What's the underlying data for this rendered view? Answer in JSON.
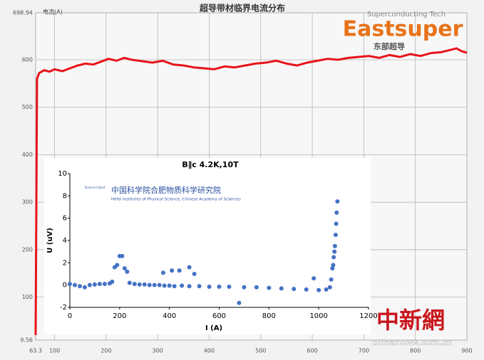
{
  "chart_data": [
    {
      "type": "line",
      "title": "超导带材临界电流分布",
      "y_label": "电流(A)",
      "xlim": [
        63.3,
        900
      ],
      "xticks": [
        63.3,
        100,
        200,
        300,
        400,
        500,
        600,
        700,
        800,
        900
      ],
      "ylim": [
        9.56,
        698.94
      ],
      "yticks": [
        9.56,
        100,
        200,
        300,
        400,
        500,
        600,
        698.94
      ],
      "grid": true,
      "x": [
        63.3,
        66,
        70,
        80,
        90,
        100,
        115,
        130,
        145,
        160,
        175,
        190,
        205,
        220,
        235,
        250,
        270,
        290,
        310,
        330,
        350,
        370,
        390,
        410,
        430,
        450,
        470,
        490,
        510,
        530,
        550,
        570,
        590,
        610,
        630,
        650,
        670,
        690,
        710,
        730,
        750,
        770,
        790,
        810,
        830,
        850,
        865,
        880,
        890,
        900
      ],
      "series": [
        {
          "name": "电流",
          "color": "#e8141a",
          "values": [
            20,
            560,
            572,
            578,
            575,
            580,
            576,
            582,
            588,
            592,
            590,
            596,
            602,
            598,
            604,
            600,
            597,
            594,
            598,
            590,
            588,
            584,
            582,
            580,
            586,
            584,
            588,
            592,
            594,
            598,
            592,
            588,
            594,
            598,
            602,
            600,
            604,
            606,
            608,
            604,
            610,
            606,
            612,
            608,
            614,
            616,
            620,
            624,
            618,
            615
          ]
        }
      ]
    },
    {
      "type": "scatter",
      "title": "B∥c  4.2K,10T",
      "x_label": "I (A)",
      "y_label": "U (uV)",
      "xlim": [
        0,
        1200
      ],
      "xticks": [
        0,
        200,
        400,
        600,
        800,
        1000,
        1200
      ],
      "ylim": [
        -2,
        10
      ],
      "yticks": [
        -2,
        0,
        2,
        4,
        6,
        8,
        10
      ],
      "x": [
        0,
        20,
        40,
        60,
        80,
        100,
        120,
        140,
        160,
        170,
        240,
        260,
        280,
        300,
        320,
        340,
        360,
        380,
        400,
        420,
        450,
        480,
        520,
        560,
        600,
        640,
        700,
        750,
        800,
        850,
        900,
        950,
        1000,
        1030,
        1045,
        180,
        190,
        200,
        210,
        220,
        230,
        375,
        410,
        440,
        480,
        500,
        680,
        980,
        1050,
        1055,
        1058,
        1060,
        1063,
        1065,
        1068,
        1070,
        1072,
        1075
      ],
      "series": [
        {
          "name": "U",
          "color": "#4472c4",
          "values": [
            0.1,
            0,
            -0.1,
            -0.2,
            0,
            0.05,
            0.1,
            0.1,
            0.15,
            0.3,
            0.2,
            0.1,
            0.05,
            0.05,
            0,
            0,
            0,
            -0.05,
            -0.05,
            -0.1,
            -0.05,
            -0.1,
            -0.1,
            -0.15,
            -0.15,
            -0.15,
            -0.2,
            -0.2,
            -0.25,
            -0.3,
            -0.35,
            -0.4,
            -0.45,
            -0.4,
            -0.2,
            1.6,
            1.8,
            2.6,
            2.6,
            1.5,
            1.2,
            1.1,
            1.3,
            1.3,
            1.6,
            1.0,
            -1.6,
            0.6,
            0.5,
            1.5,
            1.8,
            2.5,
            3,
            3.5,
            4.5,
            5.5,
            6.5,
            7.5
          ]
        }
      ]
    }
  ],
  "logo": {
    "tagline": "Superconducting Tech",
    "name": "Eastsuper",
    "chinese": "东部超导"
  },
  "inset_logo": {
    "chinese": "中国科学院合肥物质科学研究院",
    "english": "Hefei Institutes of Physical Science, Chinese Academy of Sciences",
    "badge": "Science Island"
  },
  "watermark": {
    "name": "中新網",
    "url": "chinanews.com.cn"
  }
}
